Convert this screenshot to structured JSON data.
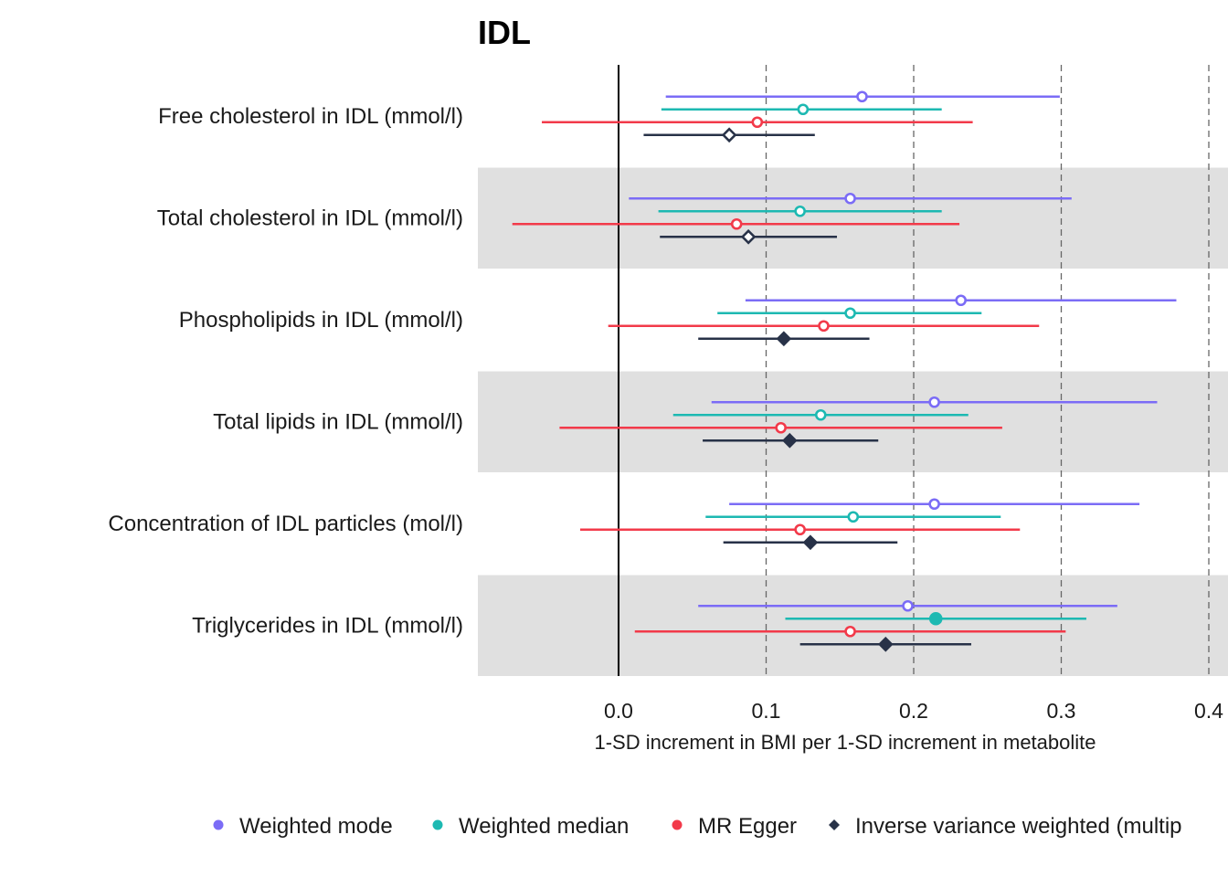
{
  "chart_data": {
    "type": "forest",
    "title": "IDL",
    "xlabel": "1-SD increment in BMI per 1-SD increment in metabolite",
    "xlim": [
      -0.095,
      0.4
    ],
    "xticks": [
      0.0,
      0.1,
      0.2,
      0.3,
      0.4
    ],
    "xtick_labels": [
      "0.0",
      "0.1",
      "0.2",
      "0.3",
      "0.4"
    ],
    "reference_line": 0,
    "dashed_gridlines": [
      0.1,
      0.2,
      0.3,
      0.4
    ],
    "alternating_row_shading": "#e0e0e0",
    "rows": [
      "Free cholesterol in IDL (mmol/l)",
      "Total cholesterol in IDL (mmol/l)",
      "Phospholipids in IDL (mmol/l)",
      "Total lipids in IDL (mmol/l)",
      "Concentration of IDL particles (mol/l)",
      "Triglycerides in IDL (mmol/l)"
    ],
    "series": [
      {
        "name": "Weighted mode",
        "color": "#7b6cf6",
        "marker": "circle",
        "points": [
          {
            "est": 0.165,
            "lo": 0.032,
            "hi": 0.299,
            "filled": false
          },
          {
            "est": 0.157,
            "lo": 0.007,
            "hi": 0.307,
            "filled": false
          },
          {
            "est": 0.232,
            "lo": 0.086,
            "hi": 0.378,
            "filled": false
          },
          {
            "est": 0.214,
            "lo": 0.063,
            "hi": 0.365,
            "filled": false
          },
          {
            "est": 0.214,
            "lo": 0.075,
            "hi": 0.353,
            "filled": false
          },
          {
            "est": 0.196,
            "lo": 0.054,
            "hi": 0.338,
            "filled": false
          }
        ]
      },
      {
        "name": "Weighted median",
        "color": "#1db9b2",
        "marker": "circle",
        "points": [
          {
            "est": 0.125,
            "lo": 0.029,
            "hi": 0.219,
            "filled": false
          },
          {
            "est": 0.123,
            "lo": 0.027,
            "hi": 0.219,
            "filled": false
          },
          {
            "est": 0.157,
            "lo": 0.067,
            "hi": 0.246,
            "filled": false
          },
          {
            "est": 0.137,
            "lo": 0.037,
            "hi": 0.237,
            "filled": false
          },
          {
            "est": 0.159,
            "lo": 0.059,
            "hi": 0.259,
            "filled": false
          },
          {
            "est": 0.215,
            "lo": 0.113,
            "hi": 0.317,
            "filled": true
          }
        ]
      },
      {
        "name": "MR Egger",
        "color": "#f23a4a",
        "marker": "circle",
        "points": [
          {
            "est": 0.094,
            "lo": -0.052,
            "hi": 0.24,
            "filled": false
          },
          {
            "est": 0.08,
            "lo": -0.072,
            "hi": 0.231,
            "filled": false
          },
          {
            "est": 0.139,
            "lo": -0.007,
            "hi": 0.285,
            "filled": false
          },
          {
            "est": 0.11,
            "lo": -0.04,
            "hi": 0.26,
            "filled": false
          },
          {
            "est": 0.123,
            "lo": -0.026,
            "hi": 0.272,
            "filled": false
          },
          {
            "est": 0.157,
            "lo": 0.011,
            "hi": 0.303,
            "filled": false
          }
        ]
      },
      {
        "name": "Inverse variance weighted (multip",
        "color": "#283248",
        "marker": "diamond",
        "points": [
          {
            "est": 0.075,
            "lo": 0.017,
            "hi": 0.133,
            "filled": false
          },
          {
            "est": 0.088,
            "lo": 0.028,
            "hi": 0.148,
            "filled": false
          },
          {
            "est": 0.112,
            "lo": 0.054,
            "hi": 0.17,
            "filled": true
          },
          {
            "est": 0.116,
            "lo": 0.057,
            "hi": 0.176,
            "filled": true
          },
          {
            "est": 0.13,
            "lo": 0.071,
            "hi": 0.189,
            "filled": true
          },
          {
            "est": 0.181,
            "lo": 0.123,
            "hi": 0.239,
            "filled": true
          }
        ]
      }
    ],
    "legend": {
      "position": "bottom",
      "items": [
        "Weighted mode",
        "Weighted median",
        "MR Egger",
        "Inverse variance weighted (multip"
      ]
    }
  }
}
